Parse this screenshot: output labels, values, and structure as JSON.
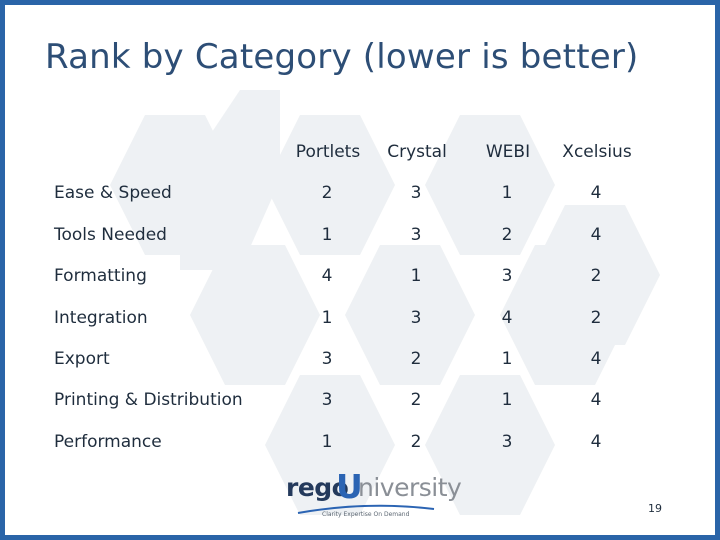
{
  "title": "Rank by Category (lower is better)",
  "columns": [
    "Portlets",
    "Crystal",
    "WEBI",
    "Xcelsius"
  ],
  "rows": [
    {
      "label": "Ease & Speed",
      "values": [
        "2",
        "3",
        "1",
        "4"
      ]
    },
    {
      "label": "Tools Needed",
      "values": [
        "1",
        "3",
        "2",
        "4"
      ]
    },
    {
      "label": "Formatting",
      "values": [
        "4",
        "1",
        "3",
        "2"
      ]
    },
    {
      "label": "Integration",
      "values": [
        "1",
        "3",
        "4",
        "2"
      ]
    },
    {
      "label": "Export",
      "values": [
        "3",
        "2",
        "1",
        "4"
      ]
    },
    {
      "label": "Printing & Distribution",
      "values": [
        "3",
        "2",
        "1",
        "4"
      ]
    },
    {
      "label": "Performance",
      "values": [
        "1",
        "2",
        "3",
        "4"
      ]
    }
  ],
  "logo": {
    "prefix": "rego",
    "mark": "U",
    "suffix": "niversity",
    "tagline": "Clarity Expertise On Demand"
  },
  "page_number": "19",
  "colors": {
    "frame": "#2a64a8",
    "title": "#2d4e76",
    "hex_bg": "#eef1f4"
  }
}
